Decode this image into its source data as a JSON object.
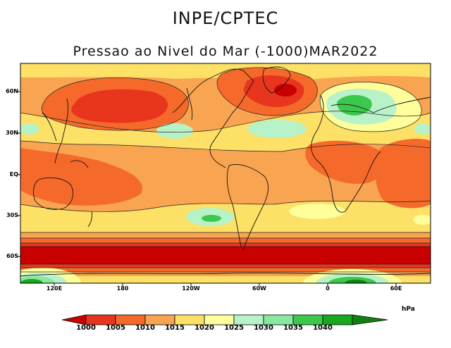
{
  "header": {
    "title": "INPE/CPTEC",
    "subtitle": "Pressao ao Nivel do Mar (-1000)MAR2022"
  },
  "map": {
    "lat_labels": [
      "60N",
      "30N",
      "EQ",
      "30S",
      "60S"
    ],
    "lon_labels": [
      "120E",
      "180",
      "120W",
      "60W",
      "0",
      "60E"
    ]
  },
  "colorbar": {
    "unit": "hPa",
    "levels": [
      "1000",
      "1005",
      "1010",
      "1015",
      "1020",
      "1025",
      "1030",
      "1035",
      "1040"
    ],
    "colors": [
      "#c80000",
      "#e8361e",
      "#f56a2a",
      "#f9a450",
      "#fde066",
      "#fefe9a",
      "#b8f2c8",
      "#88e8a0",
      "#3cc84c",
      "#18a820",
      "#108010"
    ]
  }
}
